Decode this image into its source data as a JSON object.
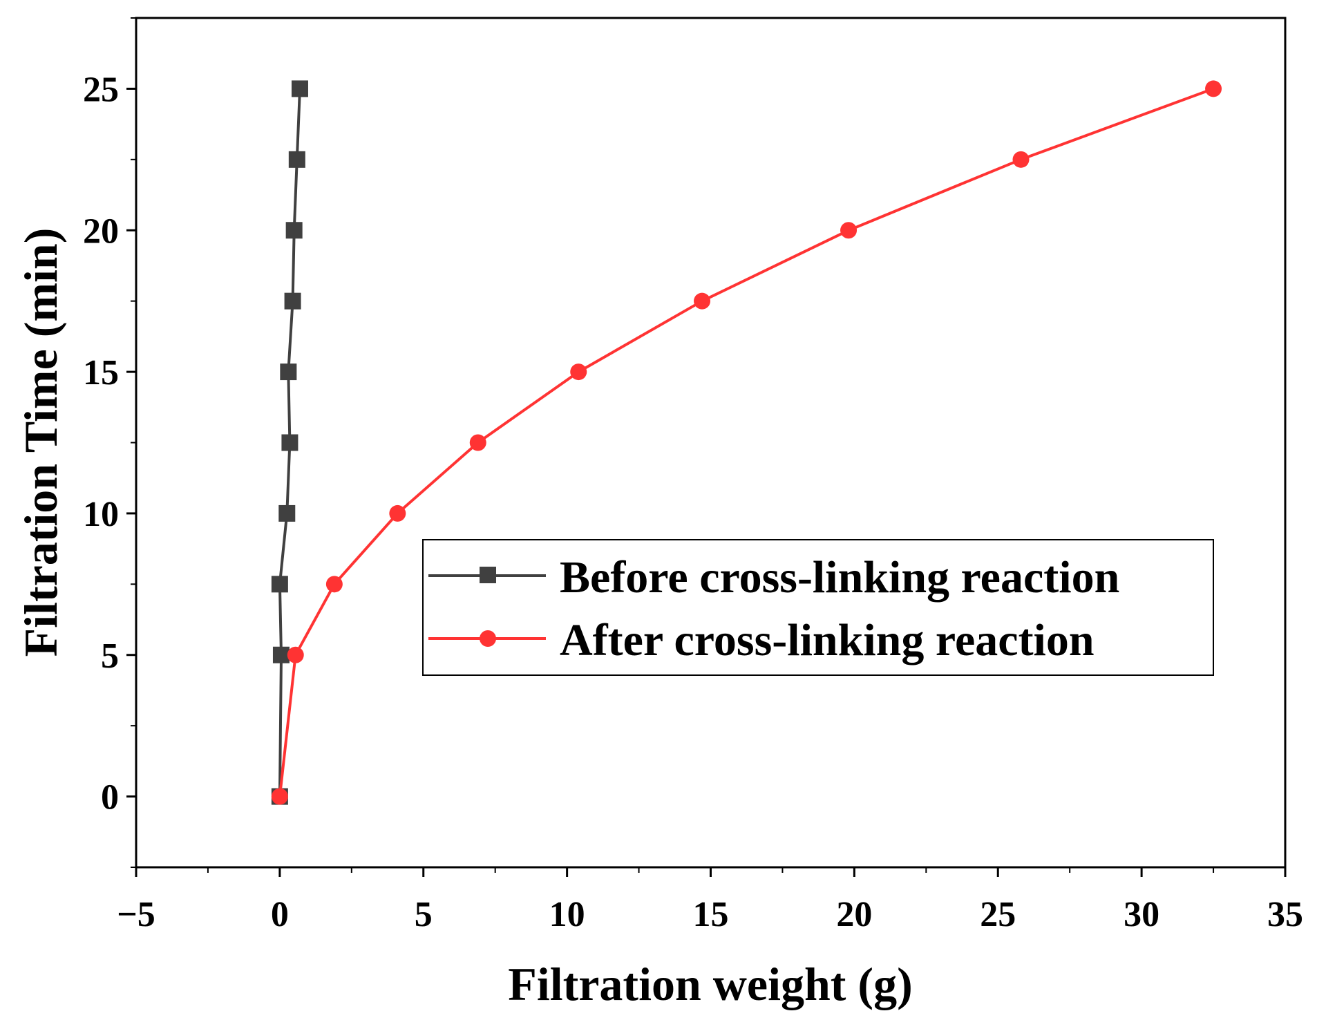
{
  "chart_data": {
    "type": "line",
    "title": "",
    "xlabel": "Filtration weight (g)",
    "ylabel": "Filtration Time (min)",
    "xlim": [
      -5,
      35
    ],
    "ylim": [
      -2.5,
      27.5
    ],
    "xticks": [
      -5,
      0,
      5,
      10,
      15,
      20,
      25,
      30,
      35
    ],
    "xtick_labels": [
      "−5",
      "0",
      "5",
      "10",
      "15",
      "20",
      "25",
      "30",
      "35"
    ],
    "yticks": [
      0,
      5,
      10,
      15,
      20,
      25
    ],
    "ytick_labels": [
      "0",
      "5",
      "10",
      "15",
      "20",
      "25"
    ],
    "grid": false,
    "legend_position": "center-right",
    "series": [
      {
        "name": "Before cross-linking reaction",
        "color": "#404040",
        "marker": "square",
        "x": [
          0.0,
          0.05,
          0.0,
          0.25,
          0.35,
          0.3,
          0.45,
          0.5,
          0.6,
          0.7
        ],
        "y": [
          0,
          5,
          7.5,
          10,
          12.5,
          15,
          17.5,
          20,
          22.5,
          25
        ]
      },
      {
        "name": "After cross-linking reaction",
        "color": "#ff3333",
        "marker": "circle",
        "x": [
          0.0,
          0.55,
          1.9,
          4.1,
          6.9,
          10.4,
          14.7,
          19.8,
          25.8,
          32.5
        ],
        "y": [
          0,
          5,
          7.5,
          10,
          12.5,
          15,
          17.5,
          20,
          22.5,
          25
        ]
      }
    ]
  }
}
